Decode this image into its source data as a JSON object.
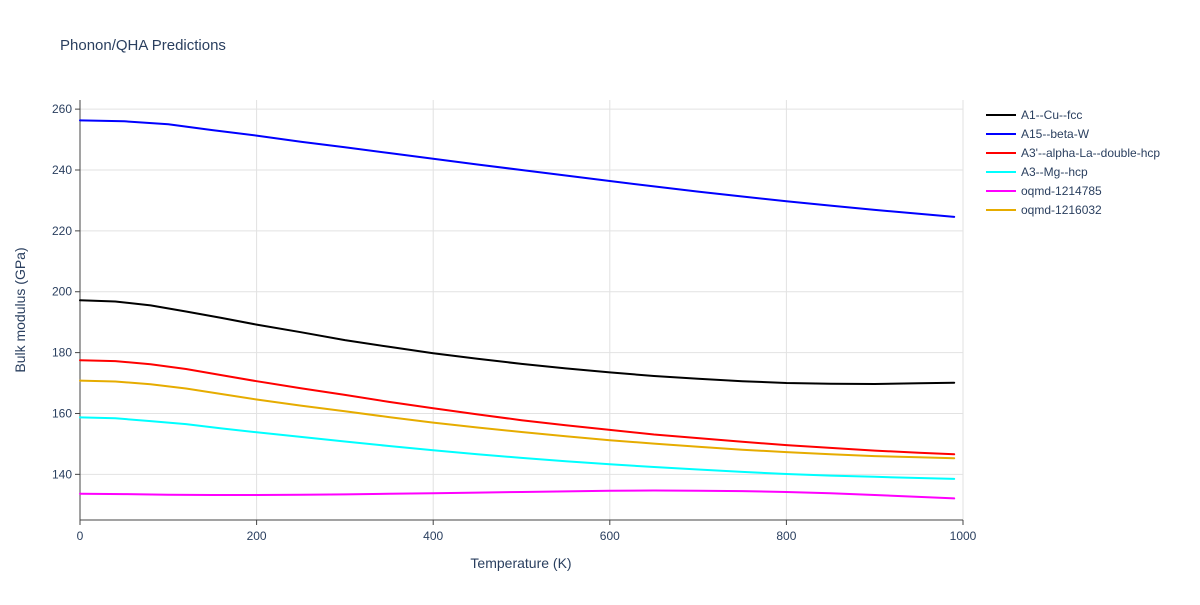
{
  "chart_data": {
    "type": "line",
    "title": "Phonon/QHA Predictions",
    "xlabel": "Temperature (K)",
    "ylabel": "Bulk modulus (GPa)",
    "xlim": [
      0,
      1000
    ],
    "ylim": [
      125,
      263
    ],
    "xticks": [
      0,
      200,
      400,
      600,
      800,
      1000
    ],
    "yticks": [
      140,
      160,
      180,
      200,
      220,
      240,
      260
    ],
    "grid": true,
    "legend_position": "top-right",
    "series": [
      {
        "name": "A1--Cu--fcc",
        "color": "#000000",
        "x": [
          0,
          40,
          80,
          120,
          160,
          200,
          250,
          300,
          350,
          400,
          450,
          500,
          550,
          600,
          650,
          700,
          750,
          800,
          850,
          900,
          950,
          990
        ],
        "y": [
          197.2,
          196.8,
          195.5,
          193.5,
          191.4,
          189.2,
          186.7,
          184.1,
          181.9,
          179.8,
          178.0,
          176.3,
          174.8,
          173.5,
          172.3,
          171.4,
          170.6,
          170.0,
          169.8,
          169.7,
          169.9,
          170.1
        ]
      },
      {
        "name": "A15--beta-W",
        "color": "#0000ff",
        "x": [
          0,
          50,
          100,
          150,
          200,
          250,
          300,
          350,
          400,
          450,
          500,
          550,
          600,
          650,
          700,
          750,
          800,
          850,
          900,
          950,
          990
        ],
        "y": [
          256.3,
          256.0,
          255.0,
          253.1,
          251.3,
          249.3,
          247.5,
          245.6,
          243.7,
          241.8,
          240.0,
          238.2,
          236.4,
          234.6,
          232.9,
          231.3,
          229.7,
          228.3,
          226.9,
          225.6,
          224.6
        ]
      },
      {
        "name": "A3'--alpha-La--double-hcp",
        "color": "#ff0000",
        "x": [
          0,
          40,
          80,
          120,
          160,
          200,
          250,
          300,
          350,
          400,
          450,
          500,
          550,
          600,
          650,
          700,
          750,
          800,
          850,
          900,
          950,
          990
        ],
        "y": [
          177.5,
          177.2,
          176.2,
          174.6,
          172.6,
          170.6,
          168.3,
          166.1,
          163.8,
          161.7,
          159.7,
          157.8,
          156.1,
          154.6,
          153.1,
          151.9,
          150.7,
          149.6,
          148.7,
          147.8,
          147.1,
          146.6
        ]
      },
      {
        "name": "A3--Mg--hcp",
        "color": "#00ffff",
        "x": [
          0,
          40,
          80,
          120,
          160,
          200,
          250,
          300,
          350,
          400,
          450,
          500,
          550,
          600,
          650,
          700,
          750,
          800,
          850,
          900,
          950,
          990
        ],
        "y": [
          158.7,
          158.4,
          157.5,
          156.5,
          155.1,
          153.8,
          152.3,
          150.8,
          149.3,
          147.9,
          146.6,
          145.4,
          144.3,
          143.3,
          142.4,
          141.6,
          140.8,
          140.1,
          139.6,
          139.2,
          138.8,
          138.5
        ]
      },
      {
        "name": "oqmd-1214785",
        "color": "#ff00ff",
        "x": [
          0,
          50,
          100,
          150,
          200,
          250,
          300,
          350,
          400,
          450,
          500,
          550,
          600,
          650,
          700,
          750,
          800,
          850,
          900,
          950,
          990
        ],
        "y": [
          133.6,
          133.5,
          133.3,
          133.2,
          133.2,
          133.3,
          133.4,
          133.6,
          133.8,
          134.0,
          134.2,
          134.4,
          134.6,
          134.7,
          134.6,
          134.5,
          134.2,
          133.8,
          133.2,
          132.6,
          132.1
        ]
      },
      {
        "name": "oqmd-1216032",
        "color": "#e6ac00",
        "x": [
          0,
          40,
          80,
          120,
          160,
          200,
          250,
          300,
          350,
          400,
          450,
          500,
          550,
          600,
          650,
          700,
          750,
          800,
          850,
          900,
          950,
          990
        ],
        "y": [
          170.8,
          170.5,
          169.6,
          168.2,
          166.4,
          164.6,
          162.6,
          160.7,
          158.8,
          157.0,
          155.4,
          153.9,
          152.5,
          151.2,
          150.1,
          149.1,
          148.1,
          147.3,
          146.6,
          146.0,
          145.6,
          145.3
        ]
      }
    ]
  }
}
